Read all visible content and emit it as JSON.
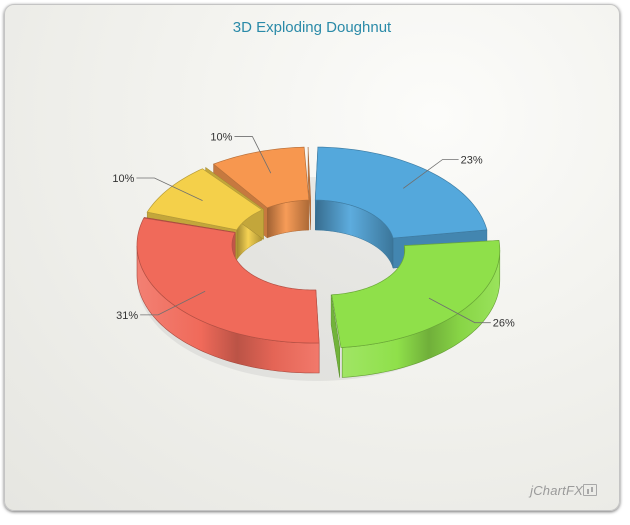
{
  "chart_data": {
    "type": "pie",
    "variant": "3d-exploded-doughnut",
    "title": "3D Exploding Doughnut",
    "slices": [
      {
        "value": 23,
        "label": "23%",
        "color": "#54a8dc"
      },
      {
        "value": 26,
        "label": "26%",
        "color": "#8fe04a"
      },
      {
        "value": 31,
        "label": "31%",
        "color": "#f06a5a"
      },
      {
        "value": 10,
        "label": "10%",
        "color": "#f4d04a"
      },
      {
        "value": 10,
        "label": "10%",
        "color": "#f7974f"
      }
    ],
    "exploded_slice": 1,
    "legend": "none"
  },
  "watermark": "jChartFX"
}
